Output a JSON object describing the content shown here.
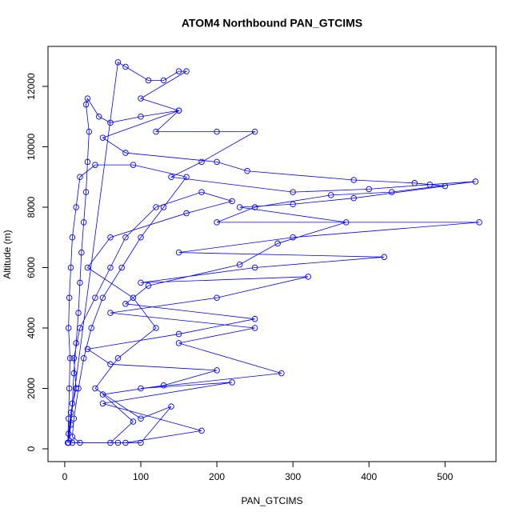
{
  "chart_data": {
    "type": "line",
    "title": "ATOM4 Northbound PAN_GTCIMS",
    "x_label": "PAN_GTCIMS",
    "y_label": "Altitude (m)",
    "color": "#0000ff",
    "markers": true,
    "xlim": [
      -22,
      567
    ],
    "ylim": [
      -424,
      13325
    ],
    "xticks": [
      0,
      100,
      200,
      300,
      400,
      500
    ],
    "yticks": [
      0,
      2000,
      4000,
      6000,
      8000,
      10000,
      12000
    ],
    "x": [
      5,
      8,
      10,
      12,
      15,
      18,
      20,
      22,
      25,
      28,
      30,
      32,
      28,
      30,
      45,
      60,
      100,
      150,
      120,
      200,
      250,
      180,
      140,
      300,
      400,
      480,
      540,
      430,
      350,
      250,
      200,
      545,
      300,
      150,
      420,
      250,
      100,
      320,
      200,
      60,
      250,
      150,
      285,
      100,
      220,
      50,
      180,
      80,
      10,
      5,
      8,
      15,
      12,
      20,
      40,
      60,
      80,
      120,
      180,
      220,
      160,
      60,
      30,
      90,
      120,
      70,
      40,
      100,
      140,
      100,
      70,
      20,
      10,
      12,
      18,
      25,
      35,
      50,
      75,
      100,
      130,
      160,
      90,
      40,
      20,
      15,
      10,
      8,
      6,
      5,
      7,
      6,
      5,
      4,
      70,
      80,
      110,
      130,
      150,
      160,
      100,
      150,
      50,
      80,
      200,
      240,
      380,
      460,
      500,
      380,
      300,
      230,
      370,
      280,
      230,
      110,
      80,
      250,
      150,
      30,
      60,
      200,
      130,
      50,
      90,
      60
    ],
    "values": [
      200,
      800,
      1500,
      2500,
      3500,
      4500,
      5500,
      6500,
      7500,
      8500,
      9500,
      10500,
      11400,
      11600,
      11000,
      10800,
      11000,
      11200,
      10500,
      10500,
      10500,
      9500,
      9000,
      8500,
      8600,
      8750,
      8850,
      8500,
      8400,
      8000,
      7500,
      7500,
      7000,
      6500,
      6350,
      6000,
      5500,
      5700,
      5000,
      4500,
      4000,
      3500,
      2500,
      2000,
      2200,
      1500,
      600,
      200,
      200,
      500,
      1200,
      2000,
      3000,
      4000,
      5000,
      6000,
      7000,
      8000,
      8500,
      8200,
      7800,
      7000,
      6000,
      5000,
      4000,
      3000,
      2000,
      1000,
      1400,
      200,
      200,
      200,
      400,
      1000,
      2000,
      3000,
      4000,
      5000,
      6000,
      7000,
      8000,
      9000,
      9400,
      9400,
      9000,
      8000,
      7000,
      6000,
      5000,
      4000,
      3000,
      2000,
      1000,
      200,
      12800,
      12650,
      12200,
      12200,
      12500,
      12500,
      11600,
      11200,
      10300,
      9800,
      9500,
      9200,
      8900,
      8800,
      8700,
      8300,
      8100,
      8000,
      7500,
      6800,
      6100,
      5400,
      4800,
      4300,
      3800,
      3300,
      2800,
      2600,
      2100,
      1800,
      900,
      200
    ]
  }
}
